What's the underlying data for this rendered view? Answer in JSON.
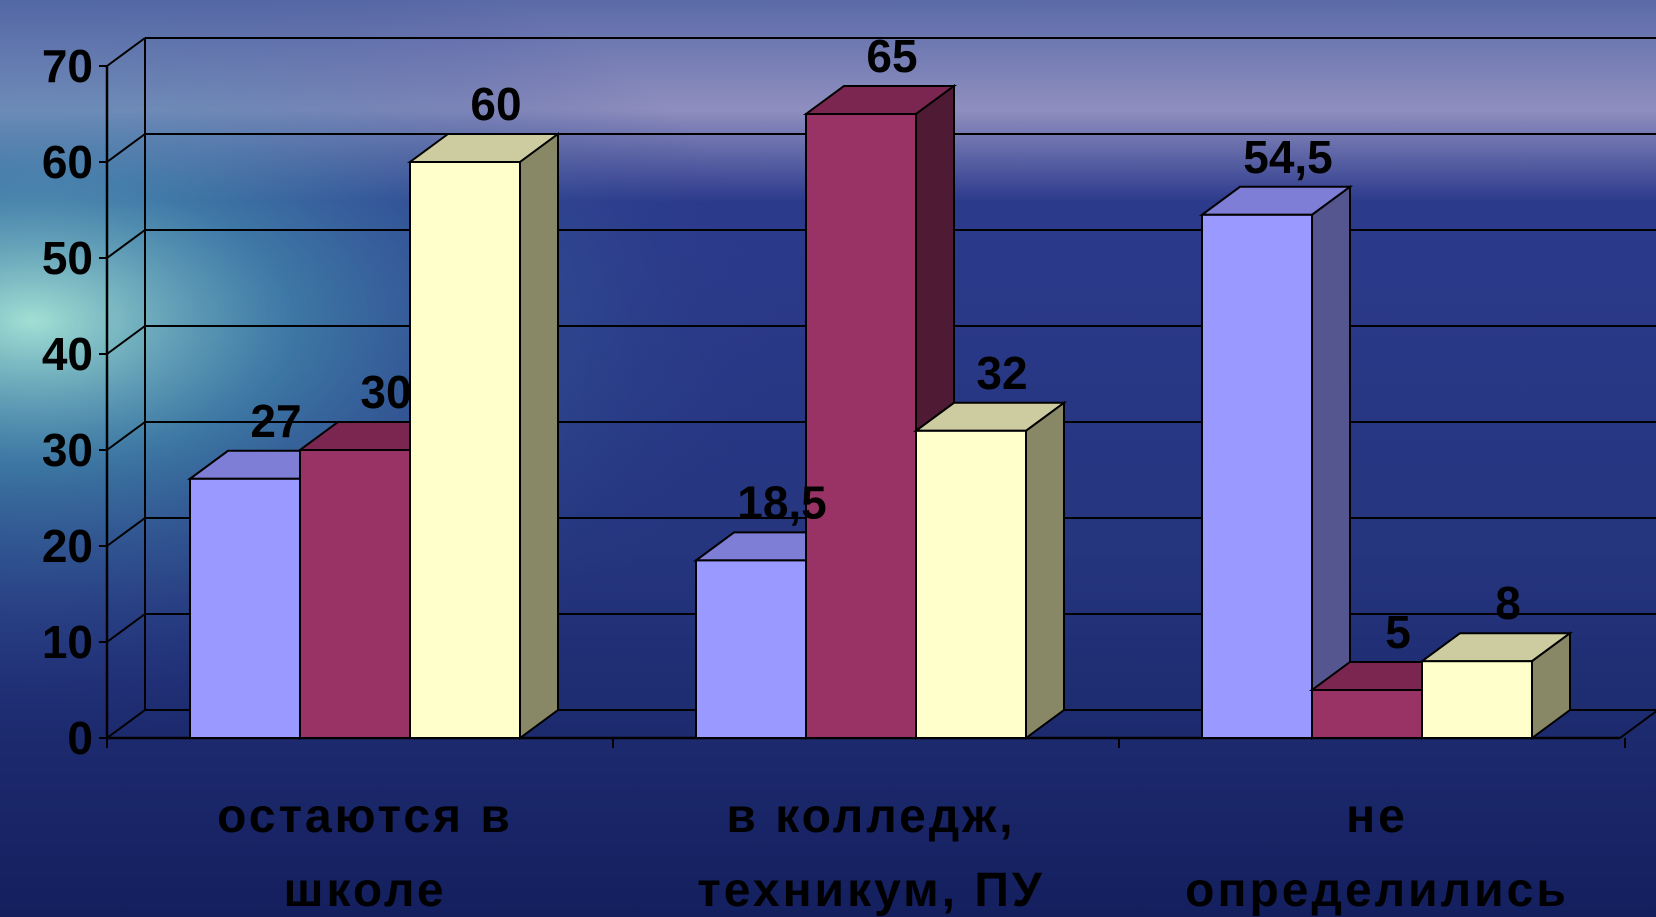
{
  "chart_data": {
    "type": "bar",
    "style": "3d-clustered-column",
    "ylim": [
      0,
      70
    ],
    "yticks": [
      0,
      10,
      20,
      30,
      40,
      50,
      60,
      70
    ],
    "grid": true,
    "legend": "none",
    "categories": [
      [
        "остаются в",
        "школе"
      ],
      [
        "в колледж,",
        "техникум, ПУ"
      ],
      [
        "не",
        "определились"
      ]
    ],
    "series": [
      {
        "values": [
          27,
          18.5,
          54.5
        ],
        "labels": [
          "27",
          "18,5",
          "54,5"
        ],
        "color": "#9999FF",
        "top": "#7E7ED6",
        "side": "#55558F"
      },
      {
        "values": [
          30,
          65,
          5
        ],
        "labels": [
          "30",
          "65",
          "5"
        ],
        "color": "#993366",
        "top": "#7A2650",
        "side": "#4F1A34"
      },
      {
        "values": [
          60,
          32,
          8
        ],
        "labels": [
          "60",
          "32",
          "8"
        ],
        "color": "#FFFFCC",
        "top": "#CCCCA0",
        "side": "#888866"
      }
    ]
  }
}
